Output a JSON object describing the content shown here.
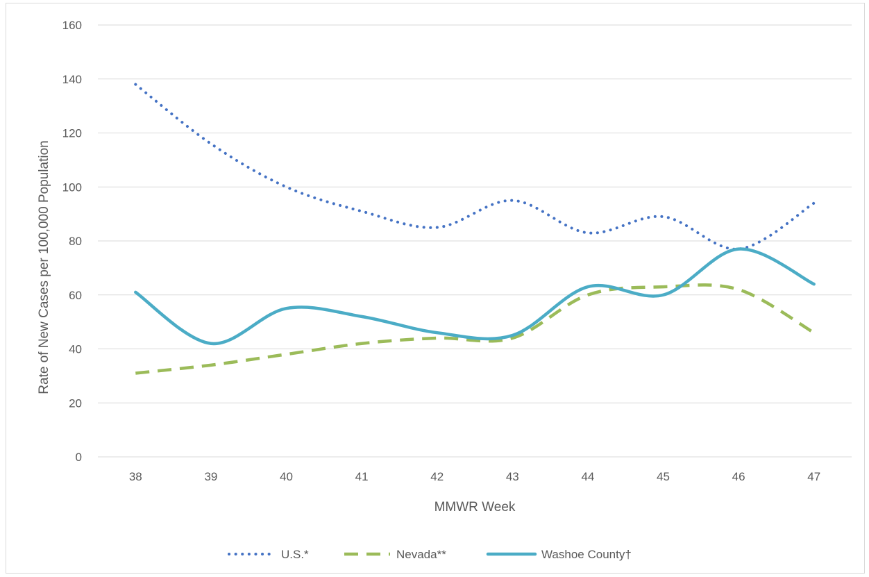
{
  "chart_data": {
    "type": "line",
    "title": "",
    "xlabel": "MMWR Week",
    "ylabel": "Rate of New Cases per 100,000 Population",
    "x": [
      38,
      39,
      40,
      41,
      42,
      43,
      44,
      45,
      46,
      47
    ],
    "ylim": [
      0,
      160
    ],
    "yticks": [
      0,
      20,
      40,
      60,
      80,
      100,
      120,
      140,
      160
    ],
    "grid": true,
    "legend_position": "bottom",
    "series": [
      {
        "name": "U.S.*",
        "style": "dotted",
        "color": "#4472c4",
        "values": [
          138,
          116,
          100,
          91,
          85,
          95,
          83,
          89,
          77,
          94
        ]
      },
      {
        "name": "Nevada**",
        "style": "dashed",
        "color": "#9bbb59",
        "values": [
          31,
          34,
          38,
          42,
          44,
          44,
          60,
          63,
          62,
          46
        ]
      },
      {
        "name": "Washoe County†",
        "style": "solid",
        "color": "#4bacc6",
        "values": [
          61,
          42,
          55,
          52,
          46,
          45,
          63,
          60,
          77,
          64
        ]
      }
    ]
  }
}
